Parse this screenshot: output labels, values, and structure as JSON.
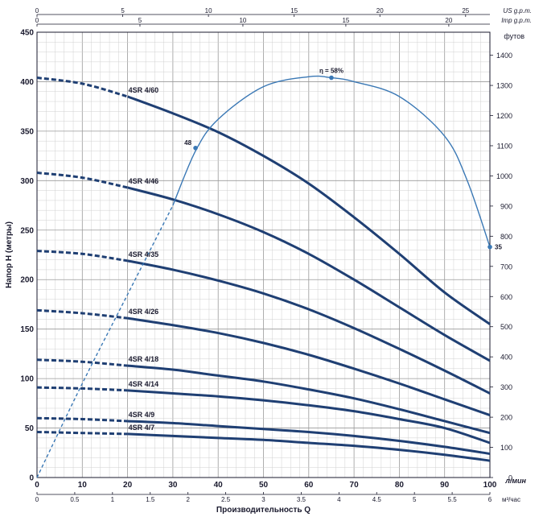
{
  "chart_data": {
    "type": "line",
    "title": "",
    "xlabel": "Производительность Q",
    "ylabel": "Напор H (метры)",
    "grid": true,
    "xlim": [
      0,
      100
    ],
    "ylim": [
      0,
      450
    ],
    "x_unit_label": "л/мин",
    "x_ticks": [
      0,
      10,
      20,
      30,
      40,
      50,
      60,
      70,
      80,
      90,
      100
    ],
    "y_ticks": [
      0,
      50,
      100,
      150,
      200,
      250,
      300,
      350,
      400,
      450
    ],
    "right_axis": {
      "label": "футов",
      "ticks": [
        0,
        100,
        200,
        300,
        400,
        500,
        600,
        700,
        800,
        900,
        1000,
        1100,
        1200,
        1300,
        1400
      ]
    },
    "bottom_secondary_axis": {
      "label": "м³/час",
      "ticks": [
        "0",
        "0.5",
        "1",
        "1.5",
        "2",
        "2.5",
        "3",
        "3.5",
        "4",
        "4.5",
        "5",
        "5.5",
        "6"
      ]
    },
    "top_axes": [
      {
        "label": "US g.p.m.",
        "ticks": [
          0,
          5,
          10,
          15,
          20,
          25
        ]
      },
      {
        "label": "Imp g.p.m.",
        "ticks": [
          0,
          5,
          10,
          15,
          20
        ]
      }
    ],
    "series": [
      {
        "name": "4SR 4/60",
        "x": [
          0,
          10,
          20,
          30,
          40,
          50,
          60,
          70,
          80,
          90,
          100
        ],
        "y": [
          404,
          398,
          385,
          368,
          349,
          325,
          297,
          263,
          226,
          187,
          155
        ]
      },
      {
        "name": "4SR 4/46",
        "x": [
          0,
          10,
          20,
          30,
          40,
          50,
          60,
          70,
          80,
          90,
          100
        ],
        "y": [
          308,
          303,
          293,
          281,
          266,
          248,
          226,
          200,
          172,
          144,
          118
        ]
      },
      {
        "name": "4SR 4/35",
        "x": [
          0,
          10,
          20,
          30,
          40,
          50,
          60,
          70,
          80,
          90,
          100
        ],
        "y": [
          229,
          226,
          219,
          210,
          199,
          186,
          170,
          151,
          130,
          108,
          85
        ]
      },
      {
        "name": "4SR 4/26",
        "x": [
          0,
          10,
          20,
          30,
          40,
          50,
          60,
          70,
          80,
          90,
          100
        ],
        "y": [
          169,
          166,
          161,
          154,
          146,
          136,
          124,
          110,
          95,
          79,
          63
        ]
      },
      {
        "name": "4SR 4/18",
        "x": [
          0,
          10,
          20,
          30,
          40,
          50,
          60,
          70,
          80,
          90,
          100
        ],
        "y": [
          119,
          117,
          113,
          109,
          103,
          97,
          89,
          80,
          69,
          57,
          45
        ]
      },
      {
        "name": "4SR 4/14",
        "x": [
          0,
          10,
          20,
          30,
          40,
          50,
          60,
          70,
          80,
          90,
          100
        ],
        "y": [
          91,
          90,
          88,
          85,
          82,
          78,
          73,
          67,
          59,
          50,
          35
        ]
      },
      {
        "name": "4SR 4/9",
        "x": [
          0,
          10,
          20,
          30,
          40,
          50,
          60,
          70,
          80,
          90,
          100
        ],
        "y": [
          60,
          59,
          57,
          55,
          52,
          49,
          46,
          42,
          37,
          31,
          24
        ]
      },
      {
        "name": "4SR 4/7",
        "x": [
          0,
          10,
          20,
          30,
          40,
          50,
          60,
          70,
          80,
          90,
          100
        ],
        "y": [
          46,
          45,
          44,
          42,
          40,
          38,
          35,
          32,
          28,
          23,
          17
        ]
      }
    ],
    "efficiency_curve": {
      "x": [
        0,
        10,
        20,
        30,
        35,
        40,
        50,
        60,
        65,
        70,
        80,
        90,
        95,
        100
      ],
      "y": [
        0,
        95,
        185,
        275,
        330,
        362,
        395,
        405,
        404,
        400,
        385,
        345,
        300,
        233
      ],
      "labels": [
        {
          "text": "48",
          "x": 35,
          "y": 333
        },
        {
          "text": "η = 58%",
          "x": 65,
          "y": 404
        },
        {
          "text": "35",
          "x": 100,
          "y": 233
        }
      ]
    }
  }
}
